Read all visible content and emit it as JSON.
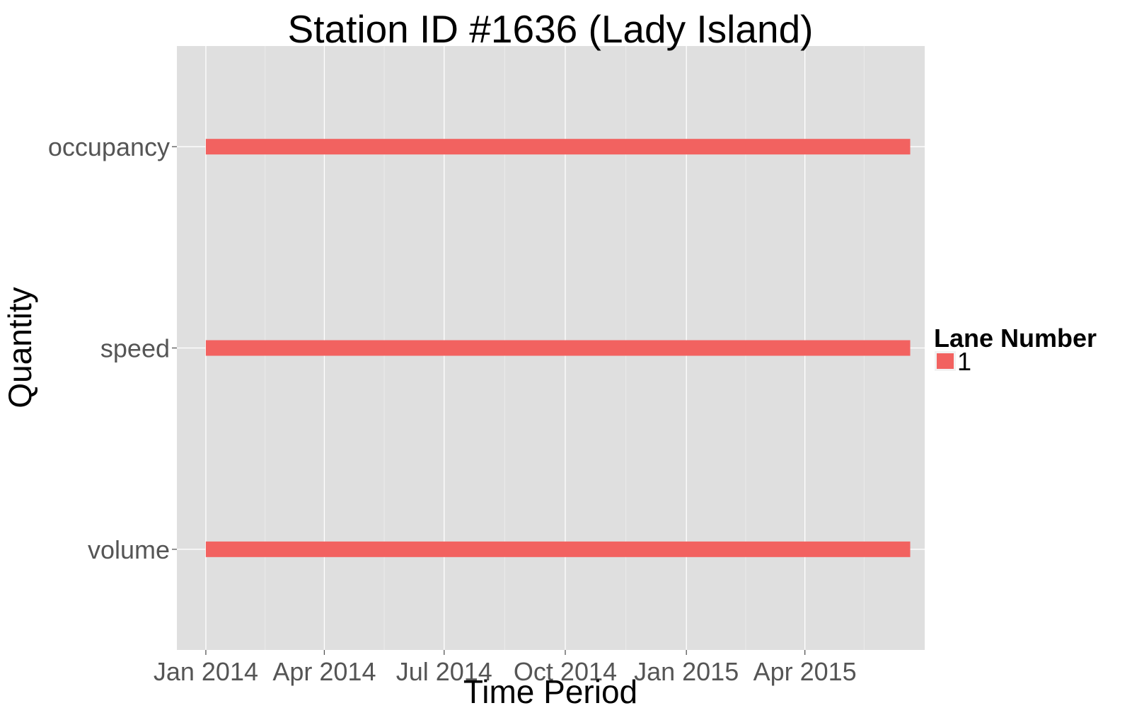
{
  "chart_data": {
    "type": "bar",
    "orientation": "horizontal-ranges",
    "title": "Station ID #1636 (Lady Island)",
    "xlabel": "Time Period",
    "ylabel": "Quantity",
    "x_axis": {
      "kind": "date",
      "range": [
        "2013-12-10",
        "2015-07-01"
      ],
      "ticks": [
        {
          "date": "2014-01-01",
          "label": "Jan 2014"
        },
        {
          "date": "2014-04-01",
          "label": "Apr 2014"
        },
        {
          "date": "2014-07-01",
          "label": "Jul 2014"
        },
        {
          "date": "2014-10-01",
          "label": "Oct 2014"
        },
        {
          "date": "2015-01-01",
          "label": "Jan 2015"
        },
        {
          "date": "2015-04-01",
          "label": "Apr 2015"
        }
      ]
    },
    "categories": [
      "volume",
      "speed",
      "occupancy"
    ],
    "series": [
      {
        "name": "1",
        "color": "#F26260",
        "ranges": [
          {
            "category": "volume",
            "start": "2014-01-01",
            "end": "2015-06-20"
          },
          {
            "category": "speed",
            "start": "2014-01-01",
            "end": "2015-06-20"
          },
          {
            "category": "occupancy",
            "start": "2014-01-01",
            "end": "2015-06-20"
          }
        ]
      }
    ],
    "legend": {
      "title": "Lane Number",
      "position": "right"
    },
    "grid": true,
    "panel_background": "#DFDFDF",
    "grid_color": "#FFFFFF"
  }
}
